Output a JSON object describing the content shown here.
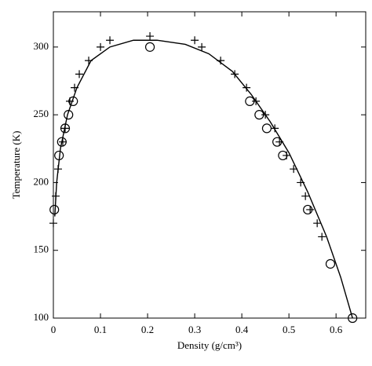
{
  "chart_data": {
    "type": "scatter",
    "x_label": "Density (g/cm³)",
    "y_label": "Temperature (K)",
    "xlim": [
      0,
      0.663
    ],
    "ylim": [
      100,
      326
    ],
    "xticks": [
      0,
      0.1,
      0.2,
      0.3,
      0.4,
      0.5,
      0.6
    ],
    "yticks": [
      100,
      150,
      200,
      250,
      300
    ],
    "series": [
      {
        "style": "line",
        "color": "#000000",
        "x": [
          0.003,
          0.007,
          0.015,
          0.03,
          0.05,
          0.08,
          0.12,
          0.17,
          0.22,
          0.28,
          0.33,
          0.38,
          0.42,
          0.46,
          0.5,
          0.54,
          0.58,
          0.61,
          0.635
        ],
        "values": [
          175,
          200,
          225,
          250,
          270,
          290,
          300,
          305,
          305,
          302,
          295,
          282,
          265,
          245,
          222,
          193,
          160,
          130,
          100
        ]
      },
      {
        "style": "circle",
        "color": "#000000",
        "x": [
          0.002,
          0.012,
          0.018,
          0.025,
          0.032,
          0.042,
          0.205,
          0.417,
          0.437,
          0.453,
          0.475,
          0.487,
          0.54,
          0.588,
          0.635
        ],
        "values": [
          180,
          220,
          230,
          240,
          250,
          260,
          300,
          260,
          250,
          240,
          230,
          220,
          180,
          140,
          100
        ]
      },
      {
        "style": "plus",
        "color": "#000000",
        "x": [
          0.0,
          0.005,
          0.01,
          0.02,
          0.025,
          0.035,
          0.045,
          0.055,
          0.075,
          0.1,
          0.12,
          0.205,
          0.3,
          0.315,
          0.355,
          0.385,
          0.41,
          0.43,
          0.45,
          0.47,
          0.48,
          0.495,
          0.51,
          0.525,
          0.535,
          0.545,
          0.56,
          0.57
        ],
        "values": [
          170,
          190,
          210,
          230,
          240,
          260,
          270,
          280,
          290,
          300,
          305,
          308,
          305,
          300,
          290,
          280,
          270,
          260,
          250,
          240,
          230,
          220,
          210,
          200,
          190,
          180,
          170,
          160
        ]
      }
    ]
  }
}
